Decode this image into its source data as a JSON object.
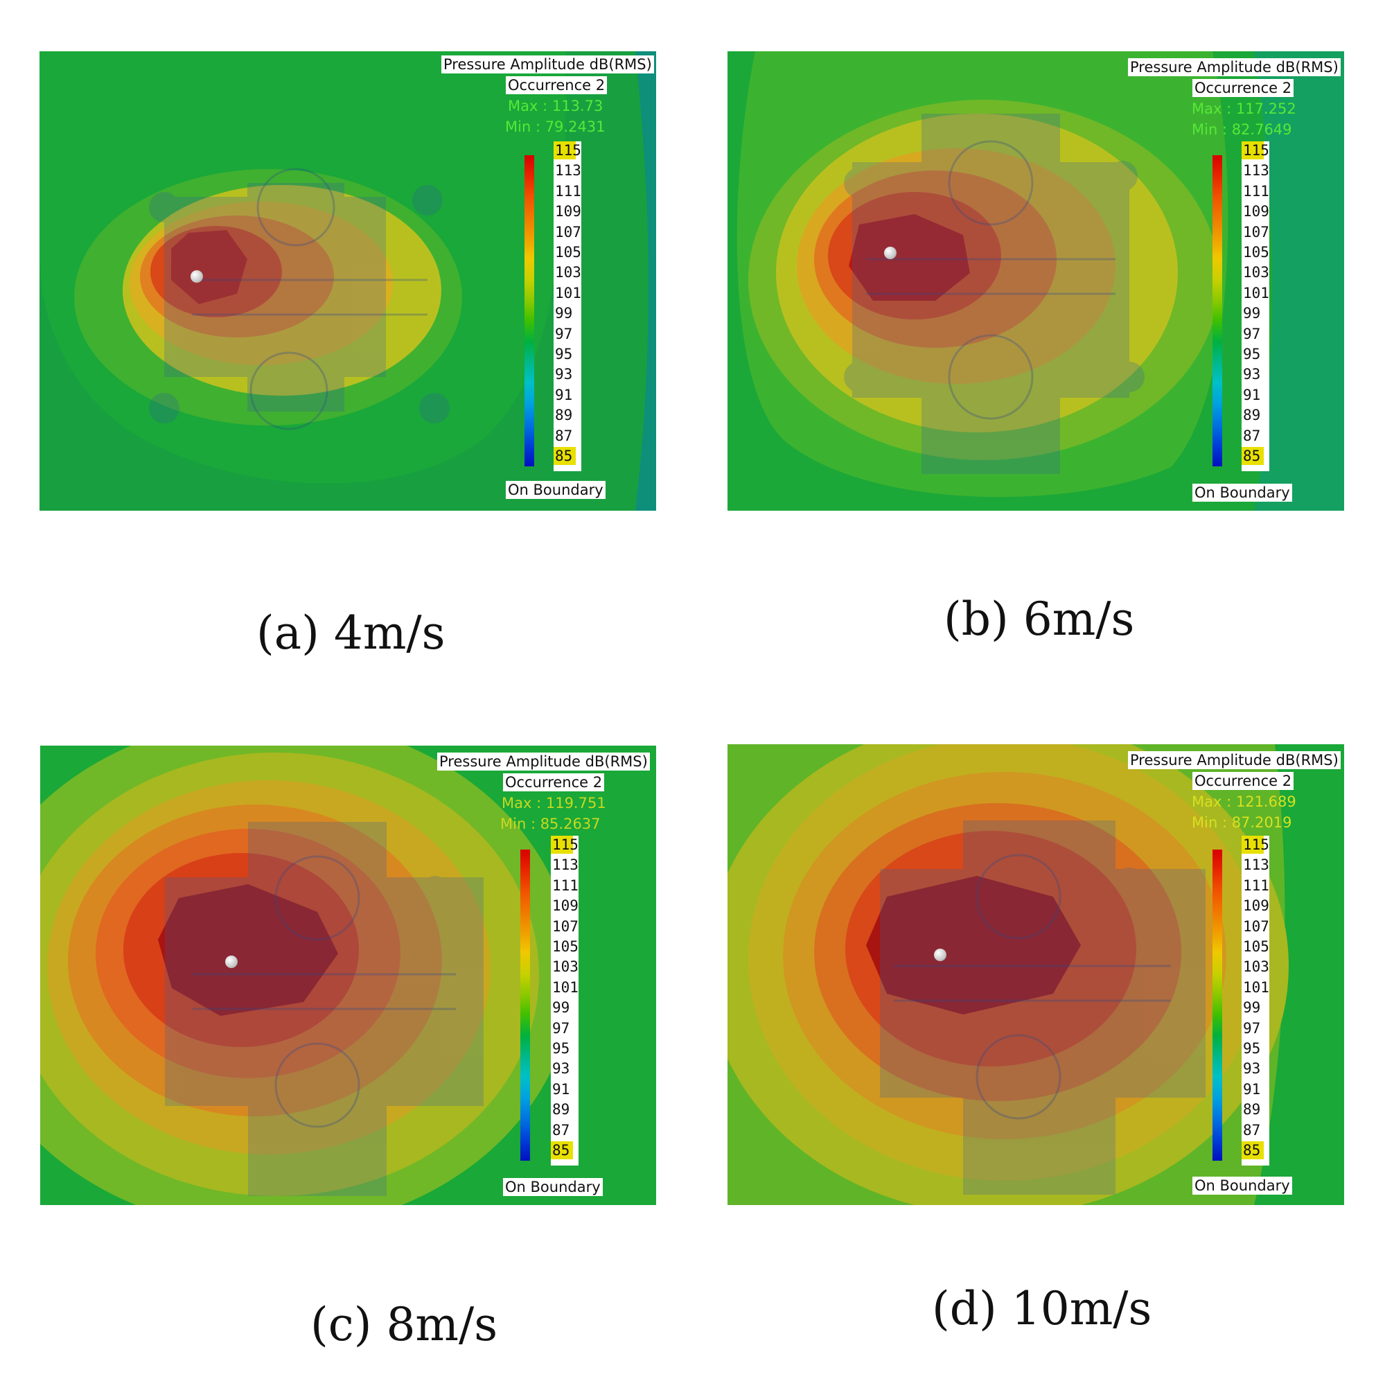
{
  "legend": {
    "title": "Pressure Amplitude dB(RMS)",
    "occurrence": "Occurrence 2",
    "boundary": "On Boundary",
    "ticks": [
      "115",
      "113",
      "111",
      "109",
      "107",
      "105",
      "103",
      "101",
      "99",
      "97",
      "95",
      "93",
      "91",
      "89",
      "87",
      "85"
    ],
    "colors": [
      "#d80000",
      "#e82800",
      "#f05000",
      "#f07800",
      "#f0a000",
      "#f0c800",
      "#c8d000",
      "#88c800",
      "#40c000",
      "#00b040",
      "#00b890",
      "#00c0c8",
      "#00a0e0",
      "#0070e0",
      "#0040d8",
      "#0010c0"
    ]
  },
  "panels": [
    {
      "caption": "(a) 4m/s",
      "max": "Max : 113.73",
      "min": "Min : 79.2431",
      "speed": 4,
      "bg": "#0b9c74"
    },
    {
      "caption": "(b) 6m/s",
      "max": "Max : 117.252",
      "min": "Min : 82.7649",
      "speed": 6,
      "bg": "#1aa040"
    },
    {
      "caption": "(c) 8m/s",
      "max": "Max : 119.751",
      "min": "Min : 85.2637",
      "speed": 8,
      "bg": "#1aa838"
    },
    {
      "caption": "(d) 10m/s",
      "max": "Max : 121.689",
      "min": "Min : 87.2019",
      "speed": 10,
      "bg": "#1aa838"
    }
  ]
}
